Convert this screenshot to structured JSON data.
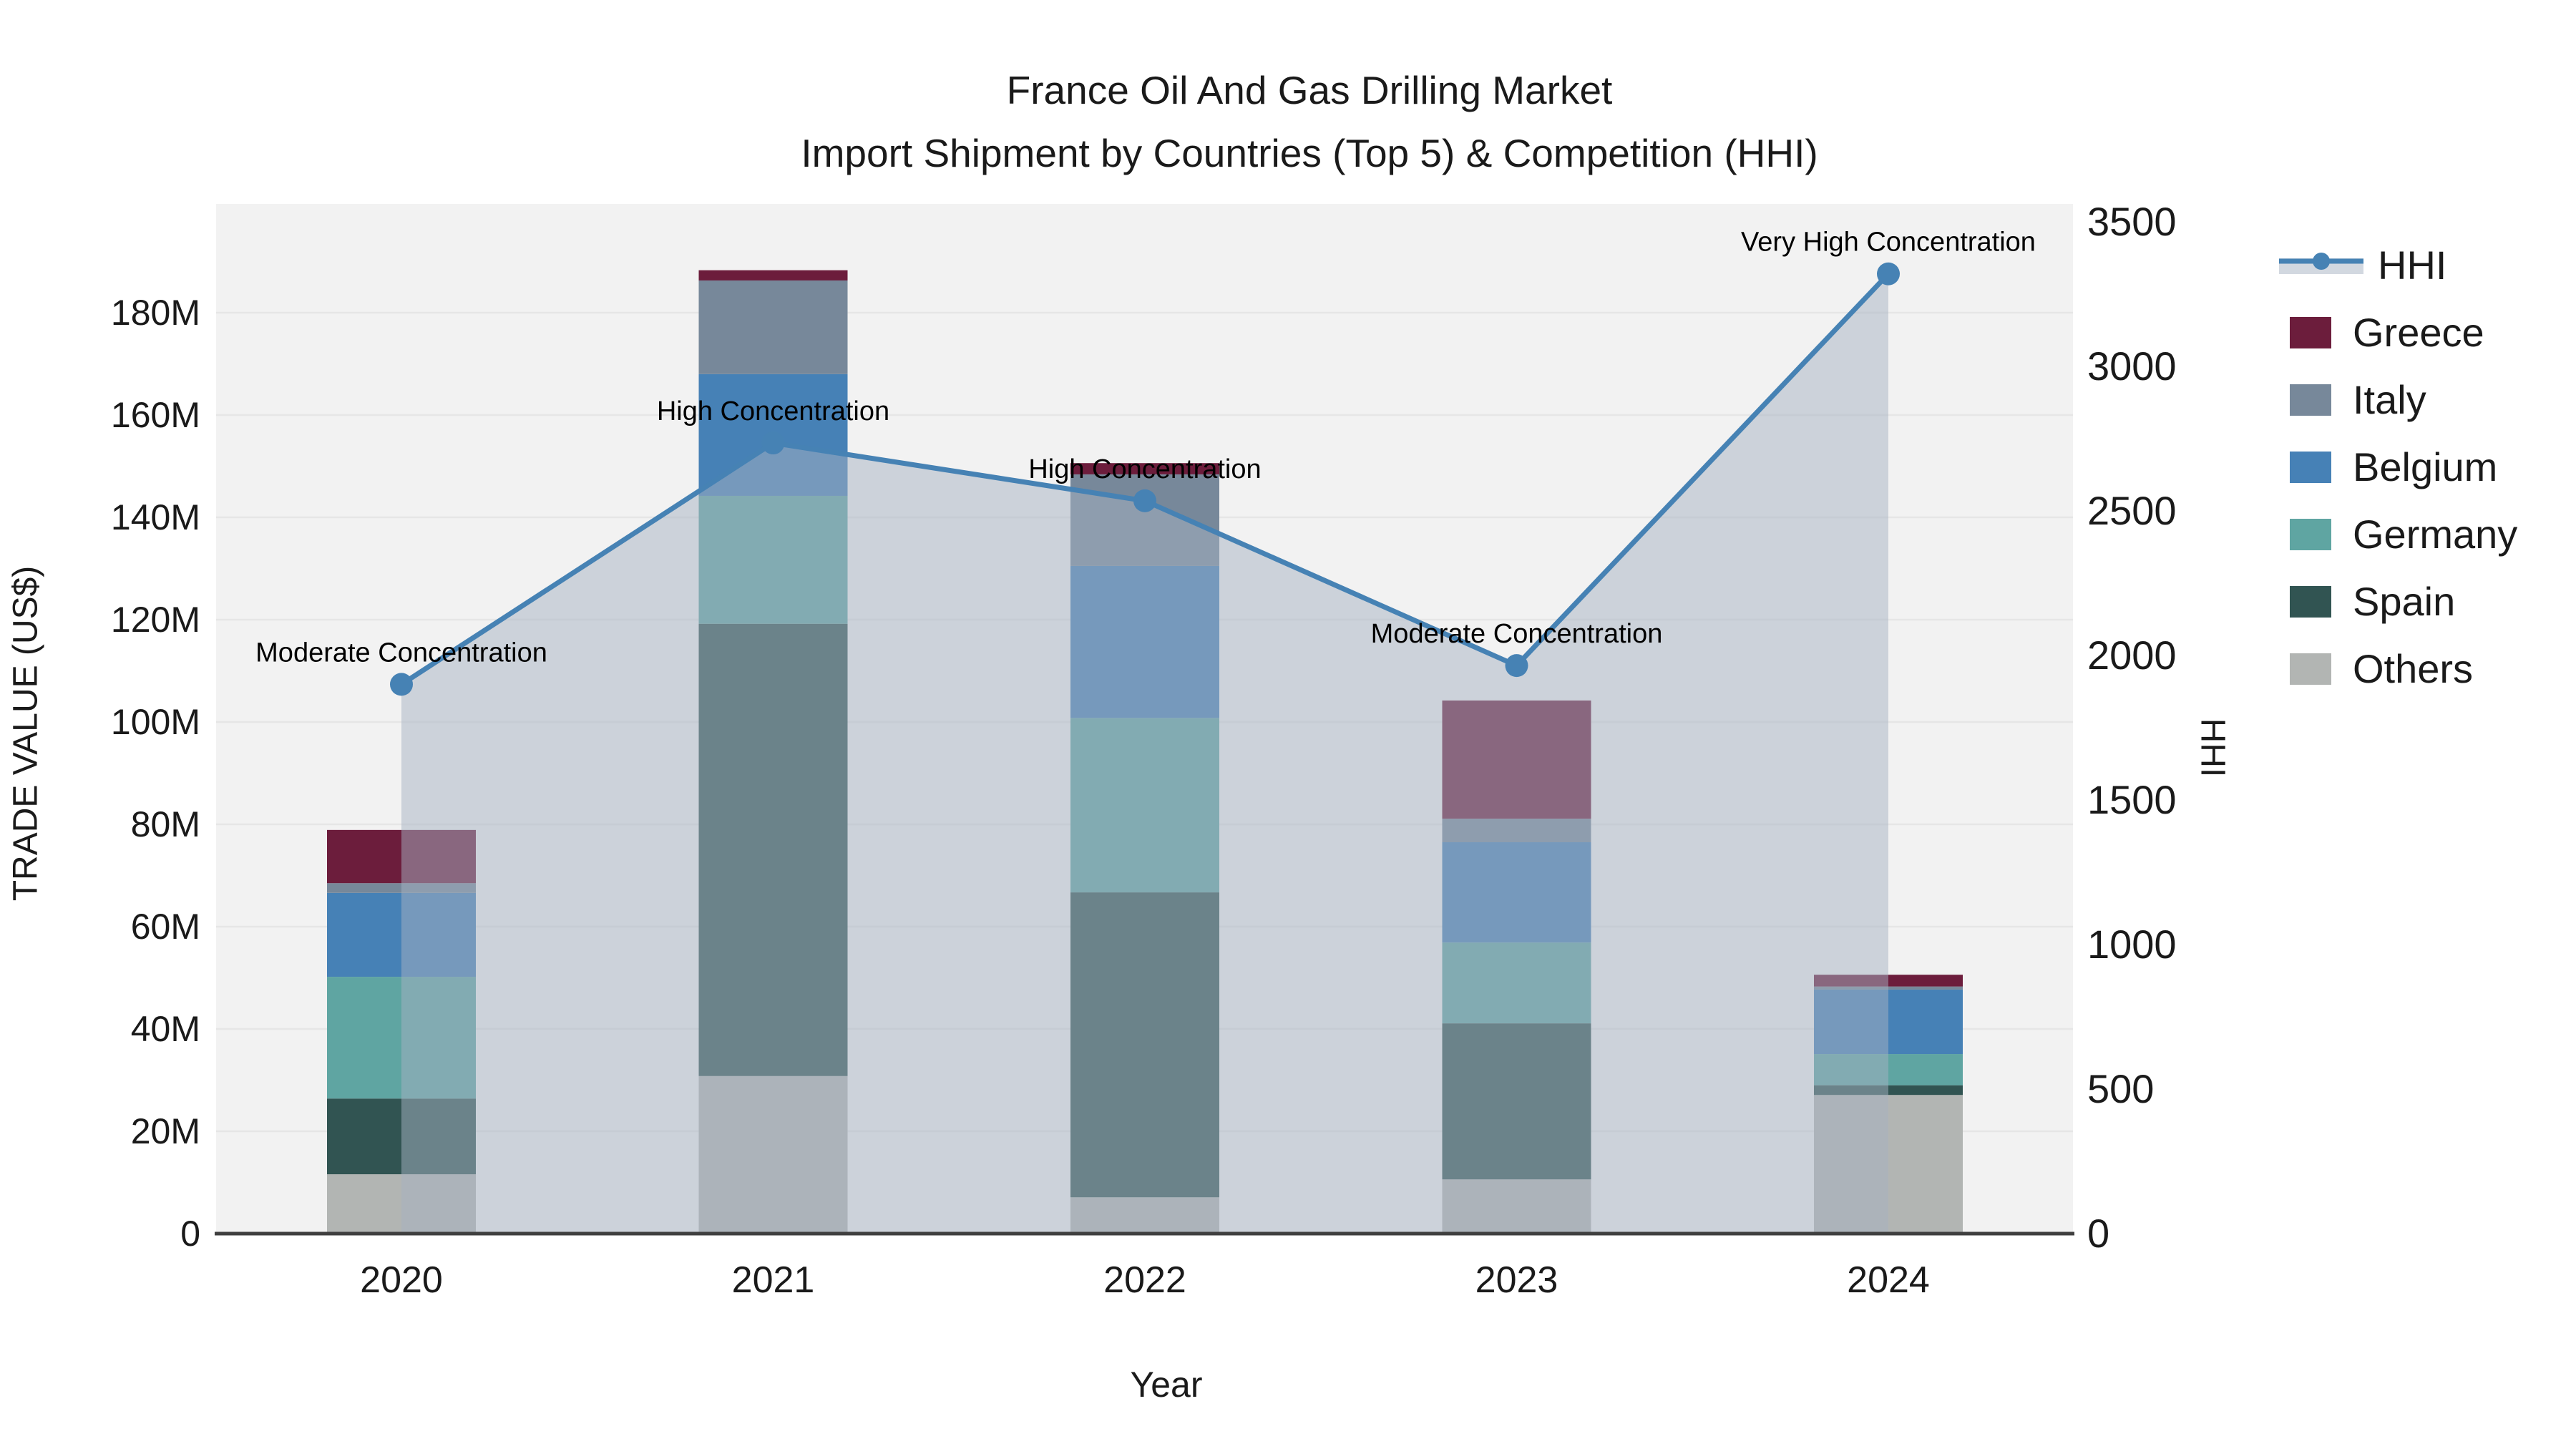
{
  "title": {
    "line1": "France Oil And Gas Drilling Market",
    "line2": "Import Shipment by Countries (Top 5) & Competition (HHI)"
  },
  "axes": {
    "x": {
      "title": "Year"
    },
    "y_left": {
      "title": "TRADE VALUE (US$)",
      "ticks": [
        "0",
        "20M",
        "40M",
        "60M",
        "80M",
        "100M",
        "120M",
        "140M",
        "160M",
        "180M"
      ]
    },
    "y_right": {
      "title": "HHI",
      "ticks": [
        "0",
        "500",
        "1000",
        "1500",
        "2000",
        "2500",
        "3000",
        "3500"
      ]
    }
  },
  "chart_data": {
    "type": "combo",
    "bar_type": "stacked",
    "categories": [
      "2020",
      "2021",
      "2022",
      "2023",
      "2024"
    ],
    "value_unit": "US$ millions",
    "series": [
      {
        "name": "Greece",
        "color": "#6C1D3C",
        "values": [
          10.4,
          2.0,
          2.2,
          23.1,
          2.3
        ]
      },
      {
        "name": "Italy",
        "color": "#77889A",
        "values": [
          1.9,
          18.3,
          17.9,
          4.6,
          0.6
        ]
      },
      {
        "name": "Belgium",
        "color": "#4681B6",
        "values": [
          16.4,
          23.8,
          29.7,
          19.6,
          12.6
        ]
      },
      {
        "name": "Germany",
        "color": "#5FA5A2",
        "values": [
          23.8,
          25.0,
          34.1,
          15.8,
          6.1
        ]
      },
      {
        "name": "Spain",
        "color": "#315452",
        "values": [
          14.8,
          88.4,
          59.6,
          30.5,
          1.9
        ]
      },
      {
        "name": "Others",
        "color": "#B2B5B3",
        "values": [
          11.6,
          30.8,
          7.1,
          10.6,
          27.1
        ]
      }
    ],
    "stack_order_bottom_to_top": [
      "Others",
      "Spain",
      "Germany",
      "Belgium",
      "Italy",
      "Greece"
    ],
    "bar_totals_millions": [
      78.9,
      188.3,
      150.6,
      104.2,
      50.6
    ],
    "line_series": {
      "name": "HHI",
      "axis": "right",
      "color": "#4682B4",
      "area_fill": "rgba(165,177,193,0.5)",
      "values": [
        1900,
        2735,
        2535,
        1965,
        3320
      ],
      "annotations": [
        "Moderate Concentration",
        "High Concentration",
        "High Concentration",
        "Moderate Concentration",
        "Very High Concentration"
      ]
    },
    "ylim_left": [
      0,
      180000000
    ],
    "ylim_right": [
      0,
      3500
    ],
    "grid": "horizontal",
    "legend_position": "right",
    "plot_bg": "#F2F2F2",
    "grid_color": "#E6E6E6",
    "axisline_color": "#3F3F3F"
  }
}
